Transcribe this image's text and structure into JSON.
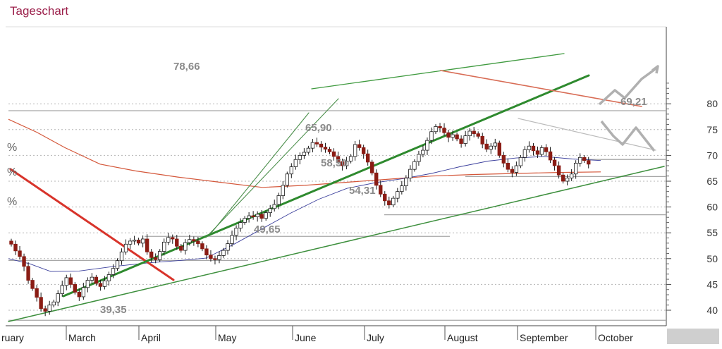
{
  "title": "Tageschart",
  "chart_data": {
    "type": "candlestick",
    "title": "Tageschart",
    "y_axis": {
      "ticks": [
        40,
        45,
        50,
        55,
        60,
        65,
        70,
        75,
        80
      ],
      "range": [
        38,
        84
      ],
      "position": "right"
    },
    "x_axis": {
      "labels": [
        "ruary",
        "March",
        "April",
        "May",
        "June",
        "July",
        "August",
        "September",
        "October"
      ]
    },
    "annotations": [
      "78,66",
      "69,21",
      "65,90",
      "58,50",
      "54,31",
      "49,65",
      "39,35"
    ],
    "left_edge_labels": [
      "%",
      "%",
      "%"
    ],
    "closes": [
      52.8,
      51.5,
      50.4,
      48.5,
      45.8,
      44.2,
      42.5,
      40.3,
      39.8,
      41.0,
      41.6,
      43.2,
      44.8,
      46.3,
      45.0,
      43.5,
      42.6,
      44.4,
      45.8,
      46.4,
      45.2,
      44.6,
      45.7,
      46.9,
      48.1,
      49.6,
      51.3,
      52.8,
      53.4,
      53.6,
      53.0,
      53.8,
      51.3,
      50.2,
      49.8,
      51.4,
      53.2,
      54.1,
      53.8,
      52.4,
      51.6,
      53.1,
      53.7,
      53.4,
      52.9,
      51.9,
      50.7,
      50.0,
      49.8,
      50.6,
      51.6,
      52.9,
      54.5,
      55.9,
      57.0,
      57.8,
      58.3,
      58.1,
      58.6,
      57.8,
      58.9,
      59.7,
      60.5,
      62.2,
      64.2,
      66.4,
      67.8,
      69.2,
      70.0,
      70.6,
      71.4,
      72.5,
      72.2,
      71.6,
      71.2,
      70.7,
      69.8,
      68.8,
      68.0,
      68.9,
      69.8,
      72.1,
      71.5,
      70.3,
      68.7,
      66.6,
      64.2,
      62.5,
      61.2,
      60.4,
      61.7,
      63.0,
      64.1,
      65.6,
      67.3,
      68.8,
      70.2,
      71.0,
      72.9,
      74.6,
      75.6,
      75.3,
      74.4,
      73.5,
      74.0,
      73.2,
      72.3,
      73.8,
      74.7,
      74.2,
      73.7,
      72.2,
      71.2,
      71.8,
      72.4,
      70.0,
      68.5,
      67.3,
      66.7,
      68.0,
      69.6,
      71.1,
      71.8,
      70.9,
      70.2,
      71.5,
      70.7,
      69.1,
      68.0,
      66.2,
      65.0,
      65.6,
      66.4,
      68.5,
      69.6,
      69.0,
      68.3
    ],
    "indicators": {
      "ma_200": [
        [
          0,
          77.0
        ],
        [
          40,
          74.5
        ],
        [
          80,
          71.5
        ],
        [
          130,
          68.3
        ],
        [
          180,
          67.0
        ],
        [
          240,
          65.8
        ],
        [
          300,
          64.8
        ],
        [
          360,
          63.8
        ],
        [
          420,
          64.2
        ],
        [
          480,
          64.8
        ],
        [
          540,
          65.4
        ],
        [
          600,
          66.0
        ],
        [
          660,
          66.3
        ],
        [
          720,
          66.5
        ],
        [
          780,
          66.7
        ],
        [
          840,
          66.8
        ]
      ],
      "ma_50": [
        [
          0,
          50.0
        ],
        [
          30,
          49.0
        ],
        [
          60,
          47.5
        ],
        [
          100,
          47.6
        ],
        [
          150,
          48.5
        ],
        [
          200,
          49.2
        ],
        [
          240,
          49.6
        ],
        [
          280,
          50.1
        ],
        [
          320,
          52.8
        ],
        [
          360,
          55.8
        ],
        [
          400,
          58.8
        ],
        [
          440,
          61.5
        ],
        [
          480,
          63.6
        ],
        [
          520,
          64.7
        ],
        [
          560,
          65.5
        ],
        [
          600,
          66.5
        ],
        [
          640,
          67.8
        ],
        [
          680,
          68.9
        ],
        [
          720,
          69.5
        ],
        [
          760,
          69.8
        ],
        [
          800,
          69.3
        ],
        [
          840,
          69.0
        ]
      ]
    },
    "grid": "horizontal dotted",
    "legend": "none"
  }
}
